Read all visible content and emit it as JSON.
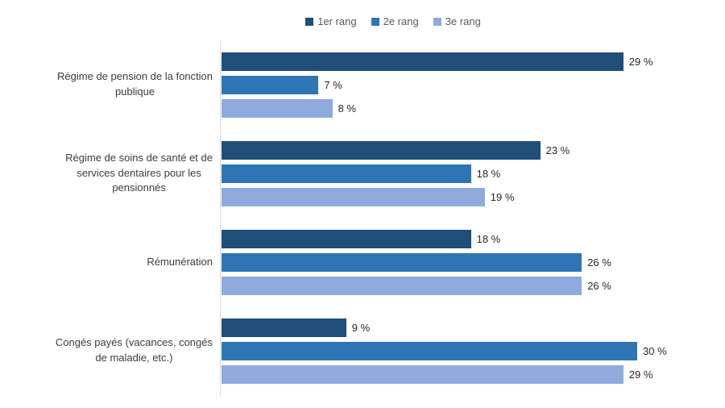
{
  "chart_data": {
    "type": "bar",
    "orientation": "horizontal",
    "title": "",
    "xlabel": "",
    "ylabel": "",
    "grid": false,
    "legend_position": "top",
    "value_labels_shown": true,
    "value_suffix": " %",
    "xlim": [
      0,
      35
    ],
    "axis_line_color": "#d9d9d9",
    "categories": [
      "Régime de pension de la fonction publique",
      "Régime de soins de santé et de services dentaires pour les pensionnés",
      "Rémunération",
      "Congés payés (vacances, congés de maladie, etc.)"
    ],
    "category_lines": [
      [
        "Régime de pension de la fonction",
        "publique"
      ],
      [
        "Régime de soins de santé et de",
        "services dentaires pour les",
        "pensionnés"
      ],
      [
        "Rémunération"
      ],
      [
        "Congés payés (vacances, congés",
        "de maladie, etc.)"
      ]
    ],
    "series": [
      {
        "name": "1er rang",
        "color": "#1F4E79",
        "values": [
          29,
          23,
          18,
          9
        ]
      },
      {
        "name": "2e rang",
        "color": "#2E75B6",
        "values": [
          7,
          18,
          26,
          30
        ]
      },
      {
        "name": "3e rang",
        "color": "#8FAADC",
        "values": [
          8,
          19,
          26,
          29
        ]
      }
    ],
    "value_labels": [
      [
        "29 %",
        "23 %",
        "18 %",
        "9 %"
      ],
      [
        "7 %",
        "18 %",
        "26 %",
        "30 %"
      ],
      [
        "8 %",
        "19 %",
        "26 %",
        "29 %"
      ]
    ]
  }
}
